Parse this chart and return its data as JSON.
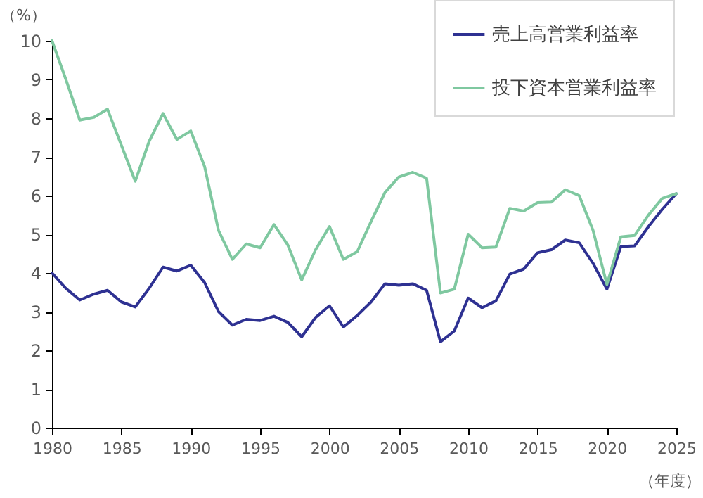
{
  "chart_data": {
    "type": "line",
    "ylabel": "（%）",
    "xlabel": "（年度）",
    "x": [
      1980,
      1981,
      1982,
      1983,
      1984,
      1985,
      1986,
      1987,
      1988,
      1989,
      1990,
      1991,
      1992,
      1993,
      1994,
      1995,
      1996,
      1997,
      1998,
      1999,
      2000,
      2001,
      2002,
      2003,
      2004,
      2005,
      2006,
      2007,
      2008,
      2009,
      2010,
      2011,
      2012,
      2013,
      2014,
      2015,
      2016,
      2017,
      2018,
      2019,
      2020,
      2021,
      2022,
      2023,
      2024,
      2025
    ],
    "series": [
      {
        "name": "売上高営業利益率",
        "color": "#2e3192",
        "values": [
          4.0,
          3.6,
          3.3,
          3.45,
          3.55,
          3.25,
          3.12,
          3.6,
          4.15,
          4.05,
          4.2,
          3.75,
          3.0,
          2.65,
          2.8,
          2.77,
          2.88,
          2.72,
          2.35,
          2.85,
          3.15,
          2.6,
          2.9,
          3.25,
          3.72,
          3.68,
          3.72,
          3.55,
          2.22,
          2.5,
          3.35,
          3.1,
          3.28,
          3.97,
          4.1,
          4.52,
          4.6,
          4.85,
          4.78,
          4.25,
          3.58,
          4.68,
          4.7,
          5.2,
          5.65,
          6.05
        ]
      },
      {
        "name": "投下資本営業利益率",
        "color": "#7fc8a0",
        "values": [
          10.0,
          9.0,
          7.95,
          8.02,
          8.23,
          7.3,
          6.37,
          7.4,
          8.12,
          7.45,
          7.67,
          6.75,
          5.1,
          4.35,
          4.75,
          4.65,
          5.25,
          4.72,
          3.82,
          4.6,
          5.2,
          4.35,
          4.55,
          5.33,
          6.08,
          6.48,
          6.6,
          6.45,
          3.48,
          3.58,
          5.0,
          4.65,
          4.67,
          5.67,
          5.6,
          5.82,
          5.83,
          6.15,
          6.0,
          5.1,
          3.7,
          4.93,
          4.97,
          5.5,
          5.93,
          6.05
        ]
      }
    ],
    "xlim": [
      1980,
      2025
    ],
    "xticks": [
      1980,
      1985,
      1990,
      1995,
      2000,
      2005,
      2010,
      2015,
      2020,
      2025
    ],
    "ylim": [
      0,
      10
    ],
    "yticks": [
      0,
      1,
      2,
      3,
      4,
      5,
      6,
      7,
      8,
      9,
      10
    ],
    "grid": false,
    "legend": "top right",
    "marker": "none",
    "line_style": "solid"
  }
}
